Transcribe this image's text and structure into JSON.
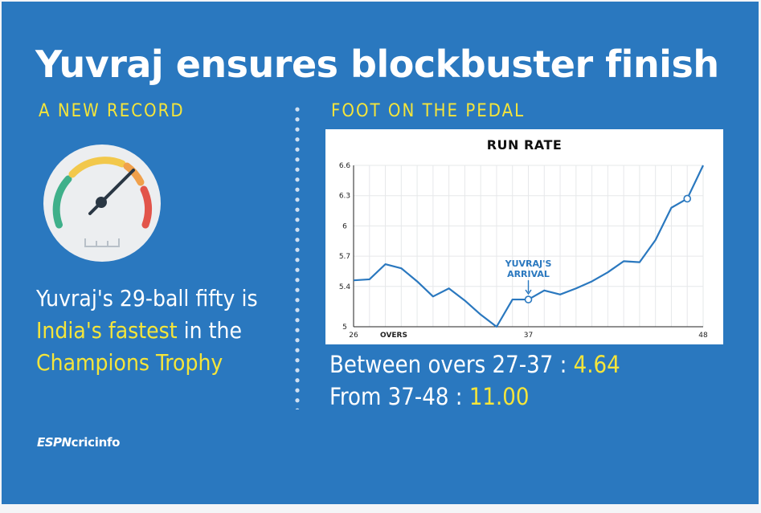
{
  "headline": "Yuvraj ensures blockbuster finish",
  "left_section": {
    "label": "A NEW RECORD",
    "text_1": "Yuvraj's 29-ball fifty is ",
    "text_highlight_1": "India's fastest",
    "text_2": " in the ",
    "text_highlight_2": "Champions Trophy"
  },
  "right_section": {
    "label": "FOOT ON THE PEDAL",
    "stat_1_label": "Between overs 27-37 : ",
    "stat_1_value": "4.64",
    "stat_2_label": "From 37-48 : ",
    "stat_2_value": "11.00"
  },
  "logo": {
    "espn": "ESPN",
    "cricinfo": "cricinfo"
  },
  "colors": {
    "background": "#2a78bf",
    "highlight": "#f5e53a",
    "line": "#2a78bf",
    "gauge_green": "#3fb08a",
    "gauge_yellow": "#f2c84b",
    "gauge_orange": "#f0a04b",
    "gauge_red": "#e2544a"
  },
  "icons": [
    "speedometer-icon"
  ],
  "chart_data": {
    "type": "line",
    "title": "RUN RATE",
    "xlabel": "OVERS",
    "ylabel": "",
    "x_ticks": [
      26,
      37,
      48
    ],
    "y_ticks": [
      5,
      5.4,
      5.7,
      6,
      6.3,
      6.6
    ],
    "xlim": [
      26,
      48
    ],
    "ylim": [
      5,
      6.6
    ],
    "grid": true,
    "series": [
      {
        "x": [
          26,
          27,
          28,
          29,
          30,
          31,
          32,
          33,
          34,
          35,
          36,
          37,
          38,
          39,
          40,
          41,
          42,
          43,
          44,
          45,
          46,
          47,
          48
        ],
        "values": [
          5.46,
          5.47,
          5.62,
          5.58,
          5.45,
          5.3,
          5.38,
          5.26,
          5.12,
          5.0,
          5.27,
          5.27,
          5.36,
          5.32,
          5.38,
          5.45,
          5.54,
          5.65,
          5.64,
          5.86,
          6.18,
          6.27,
          6.6
        ]
      }
    ],
    "markers": [
      {
        "x": 37,
        "y": 5.27,
        "label": "YUVRAJ'S ARRIVAL"
      },
      {
        "x": 47,
        "y": 6.27,
        "label": ""
      }
    ]
  }
}
